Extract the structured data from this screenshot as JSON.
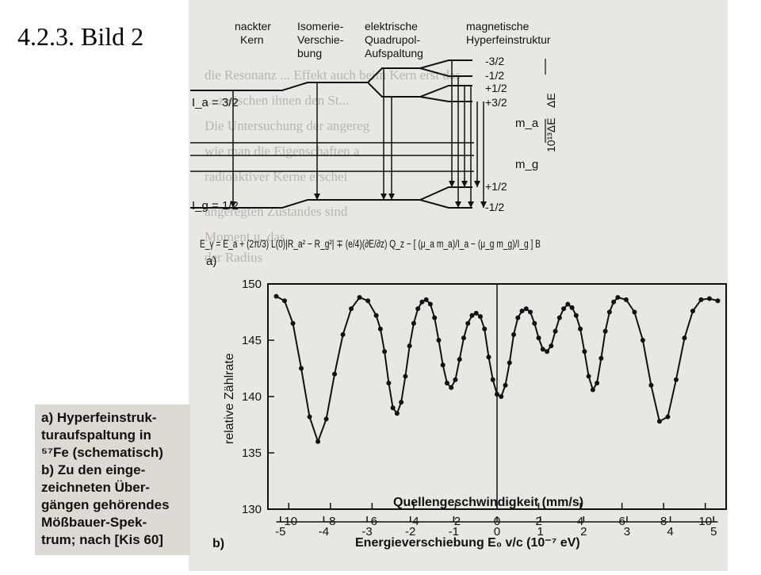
{
  "slide": {
    "title": "4.2.3.   Bild 2"
  },
  "scheme": {
    "headers": [
      "nackter Kern",
      "Isomerie- Verschie- bung",
      "elektrische Quadrupol- Aufspaltung",
      "magnetische Hyperfeinstruktur"
    ],
    "header_lines": [
      [
        "nackter",
        "Kern"
      ],
      [
        "Isomerie-",
        "Verschie-",
        "bung"
      ],
      [
        "elektrische",
        "Quadrupol-",
        "Aufspaltung"
      ],
      [
        "magnetische",
        "Hyperfeinstruktur"
      ]
    ],
    "excited_label": "I_a = 3/2",
    "ground_label": "I_g = 1/2",
    "upper_sublevels": [
      "-3/2",
      "-1/2",
      "+1/2",
      "+3/2"
    ],
    "lower_sublevels": [
      "+1/2",
      "-1/2"
    ],
    "m_a": "m_a",
    "m_g": "m_g",
    "delta_e": "ΔE",
    "delta_e_scaled": "10¹³ΔE",
    "formula": "E_γ = E_a + (2π/3) L(0)|R_a² − R_g²| ∓ (e/4)(∂E/∂z) Q_z − [ (μ_a m_a)/I_a − (μ_g m_g)/I_g ] B",
    "part_a": "a)"
  },
  "chart_data": {
    "type": "line",
    "title": "",
    "ylabel": "relative Zählrate",
    "xlabel": "Quellengeschwindigkeit (mm/s)",
    "x2label": "Energieverschiebung E₀ v/c (10⁻⁷ eV)",
    "xlim": [
      -11,
      11
    ],
    "ylim": [
      130,
      150
    ],
    "yticks": [
      130,
      135,
      140,
      145,
      150
    ],
    "xticks": [
      -10,
      -8,
      -6,
      -4,
      -2,
      0,
      2,
      4,
      6,
      8,
      10
    ],
    "x2ticks": [
      -5,
      -4,
      -3,
      -2,
      -1,
      0,
      1,
      2,
      3,
      4,
      5
    ],
    "part_label": "b)",
    "series": [
      {
        "x": [
          -10.6,
          -10.2,
          -9.8,
          -9.4,
          -9.0,
          -8.6,
          -8.2,
          -7.8,
          -7.4,
          -7.0,
          -6.6,
          -6.2,
          -5.8,
          -5.6,
          -5.4,
          -5.2,
          -5.0,
          -4.8,
          -4.6,
          -4.4,
          -4.2,
          -4.0,
          -3.8,
          -3.6,
          -3.4,
          -3.2,
          -3.0,
          -2.8,
          -2.6,
          -2.4,
          -2.2,
          -2.0,
          -1.8,
          -1.6,
          -1.4,
          -1.2,
          -1.0,
          -0.8,
          -0.6,
          -0.4,
          -0.2,
          0.0,
          0.2,
          0.4,
          0.6,
          0.8,
          1.0,
          1.2,
          1.4,
          1.6,
          1.8,
          2.0,
          2.2,
          2.4,
          2.6,
          2.8,
          3.0,
          3.2,
          3.4,
          3.6,
          3.8,
          4.0,
          4.2,
          4.4,
          4.6,
          4.8,
          5.0,
          5.2,
          5.4,
          5.6,
          5.8,
          6.2,
          6.6,
          7.0,
          7.4,
          7.8,
          8.2,
          8.6,
          9.0,
          9.4,
          9.8,
          10.2,
          10.6
        ],
        "y": [
          148.9,
          148.5,
          146.5,
          142.5,
          138.2,
          136.0,
          138.0,
          142.0,
          145.5,
          147.8,
          148.8,
          148.5,
          147.2,
          146.0,
          144.0,
          141.2,
          139.0,
          138.5,
          139.5,
          141.8,
          144.5,
          146.5,
          147.8,
          148.4,
          148.6,
          148.2,
          147.0,
          145.0,
          142.8,
          141.2,
          140.8,
          141.5,
          143.3,
          145.2,
          146.5,
          147.2,
          147.4,
          147.1,
          146.0,
          143.5,
          141.5,
          140.2,
          140.0,
          141.0,
          143.0,
          145.5,
          147.0,
          147.6,
          147.8,
          147.5,
          146.5,
          145.2,
          144.2,
          144.0,
          144.5,
          145.8,
          147.0,
          147.8,
          148.2,
          147.9,
          147.2,
          146.0,
          144.0,
          141.8,
          140.6,
          141.2,
          143.4,
          145.8,
          147.5,
          148.4,
          148.8,
          148.6,
          147.5,
          145.0,
          141.0,
          137.8,
          138.2,
          141.5,
          145.2,
          147.6,
          148.6,
          148.7,
          148.5
        ]
      }
    ]
  },
  "caption": {
    "lines": [
      "a) Hyperfeinstruk-",
      "turaufspaltung in",
      "⁵⁷Fe (schematisch)",
      "b) Zu den einge-",
      "zeichneten Über-",
      "gängen gehörendes",
      "Mößbauer-Spek-",
      "trum; nach [Kis 60]"
    ]
  },
  "colors": {
    "scan_paper": "#e9e7e3",
    "ink": "#111111",
    "bleed_text": "#b8b4ae",
    "caption_bg": "#ddd9d3"
  }
}
